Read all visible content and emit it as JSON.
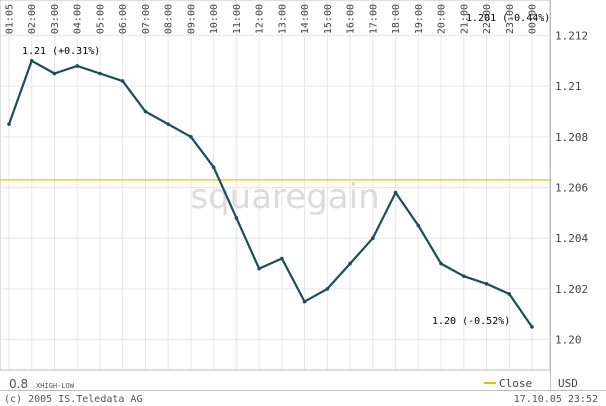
{
  "chart_data": {
    "type": "line",
    "x_ticks": [
      "01:05",
      "02:00",
      "03:00",
      "04:00",
      "05:00",
      "06:00",
      "07:00",
      "08:00",
      "09:00",
      "10:00",
      "11:00",
      "12:00",
      "13:00",
      "14:00",
      "15:00",
      "16:00",
      "17:00",
      "18:00",
      "19:00",
      "20:00",
      "21:00",
      "22:00",
      "23:00",
      "00:00"
    ],
    "y_ticks": [
      "1.212",
      "1.21",
      "1.208",
      "1.206",
      "1.204",
      "1.202",
      "1.20"
    ],
    "ylim": [
      1.1988,
      1.2134
    ],
    "grid": true,
    "series": [
      {
        "name": "Close",
        "color": "#1b4e5a",
        "hour_values": [
          1.2085,
          1.211,
          1.2105,
          1.2108,
          1.2105,
          1.2102,
          1.209,
          1.2085,
          1.208,
          1.2068,
          1.2048,
          1.2028,
          1.2032,
          1.2015,
          1.202,
          1.203,
          1.204,
          1.2058,
          1.2045,
          1.203,
          1.2025,
          1.2022,
          1.2018,
          1.2005
        ]
      }
    ],
    "reference_line": {
      "value": 1.2063,
      "color": "#e0c000"
    },
    "annotations": {
      "high": "1.21 (+0.31%)",
      "last": "1.201 (-0.44%)",
      "low": "1.20 (-0.52%)"
    },
    "watermark": "squaregain",
    "legend": {
      "label": "Close",
      "color": "#e0c000",
      "placement": "bottom-right"
    },
    "currency": "USD",
    "volume_label": "0.8",
    "volume_sublabel": "XHIGH-LOW"
  },
  "footer": {
    "copyright": "(c) 2005 IS.Teledata AG",
    "timestamp": "17.10.05 23:52"
  }
}
